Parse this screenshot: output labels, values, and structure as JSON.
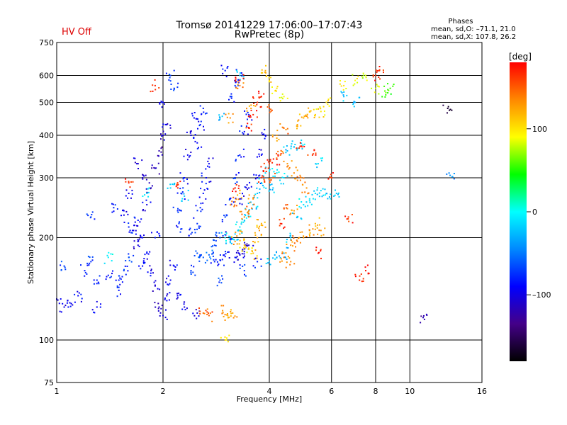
{
  "header": {
    "hv_status": "HV Off",
    "title_line1": "Tromsø 20141229 17:06:00–17:07:43",
    "title_line2": "RwPretec (8p)",
    "stats_title": "Phases",
    "stats_o": "mean, sd,O: –71.1, 21.0",
    "stats_x": "mean, sd,X: 107.8, 26.2"
  },
  "colors": {
    "hv_status": "#dd0000",
    "background": "#ffffff",
    "axes": "#000000"
  },
  "chart_data": {
    "type": "scatter",
    "xlabel": "Frequency [MHz]",
    "ylabel": "Stationary phase Virtual Height [km]",
    "x_scale": "log",
    "y_scale": "log",
    "xlim": [
      1,
      16
    ],
    "ylim": [
      75,
      750
    ],
    "x_ticks": [
      1,
      2,
      4,
      6,
      8,
      10,
      16
    ],
    "x_tick_labels": [
      "1",
      "2",
      "4",
      "6",
      "8",
      "10",
      "16"
    ],
    "y_ticks": [
      75,
      100,
      200,
      300,
      400,
      500,
      600,
      750
    ],
    "y_tick_labels": [
      "75",
      "100",
      "200",
      "300",
      "400",
      "500",
      "600",
      "750"
    ],
    "grid": true,
    "colorbar": {
      "unit": "[deg]",
      "range": [
        -180,
        180
      ],
      "ticks": [
        100,
        0,
        -100
      ],
      "tick_labels": [
        "100",
        "0",
        "–100"
      ],
      "stops": [
        "#ff0000",
        "#ff8800",
        "#ffff00",
        "#00ff00",
        "#00ffff",
        "#0088ff",
        "#0000ff",
        "#440088",
        "#000000"
      ]
    },
    "series": [
      {
        "points": [
          [
            1.0,
            132,
            -95
          ],
          [
            1.05,
            125,
            -100
          ],
          [
            1.1,
            128,
            -95
          ],
          [
            1.15,
            135,
            -90
          ],
          [
            1.2,
            160,
            -80
          ],
          [
            1.25,
            170,
            -75
          ],
          [
            1.3,
            150,
            -80
          ],
          [
            1.4,
            155,
            -85
          ],
          [
            1.5,
            150,
            -80
          ],
          [
            1.55,
            160,
            -75
          ],
          [
            1.6,
            175,
            -70
          ],
          [
            1.7,
            225,
            -85
          ],
          [
            1.75,
            200,
            -90
          ],
          [
            1.8,
            180,
            -95
          ],
          [
            1.85,
            160,
            -100
          ],
          [
            1.9,
            145,
            -105
          ],
          [
            1.95,
            125,
            -110
          ],
          [
            2.0,
            118,
            -105
          ],
          [
            2.05,
            135,
            -100
          ],
          [
            2.1,
            150,
            -95
          ],
          [
            2.15,
            165,
            -90
          ],
          [
            1.8,
            250,
            -100
          ],
          [
            1.85,
            280,
            -110
          ],
          [
            1.9,
            320,
            -115
          ],
          [
            1.95,
            360,
            -120
          ],
          [
            2.0,
            400,
            -110
          ],
          [
            2.05,
            430,
            -105
          ],
          [
            1.7,
            330,
            -110
          ],
          [
            1.75,
            300,
            -105
          ],
          [
            1.6,
            270,
            -100
          ],
          [
            1.55,
            240,
            -95
          ],
          [
            1.65,
            210,
            -100
          ],
          [
            1.7,
            190,
            -105
          ],
          [
            1.75,
            165,
            -90
          ],
          [
            1.9,
            200,
            -85
          ],
          [
            2.2,
            240,
            -80
          ],
          [
            2.25,
            270,
            -75
          ],
          [
            2.3,
            300,
            -90
          ],
          [
            2.35,
            350,
            -95
          ],
          [
            2.4,
            400,
            -100
          ],
          [
            2.45,
            450,
            -95
          ],
          [
            2.1,
            600,
            -70
          ],
          [
            2.15,
            550,
            -75
          ],
          [
            2.0,
            500,
            -90
          ],
          [
            2.2,
            215,
            -85
          ],
          [
            2.4,
            205,
            -80
          ],
          [
            2.5,
            220,
            -75
          ],
          [
            2.55,
            245,
            -80
          ],
          [
            2.6,
            270,
            -85
          ],
          [
            2.65,
            300,
            -90
          ],
          [
            2.7,
            330,
            -95
          ],
          [
            2.5,
            380,
            -90
          ],
          [
            2.55,
            430,
            -85
          ],
          [
            2.6,
            480,
            -80
          ],
          [
            2.5,
            180,
            -65
          ],
          [
            2.6,
            175,
            -60
          ],
          [
            2.7,
            178,
            -60
          ],
          [
            2.8,
            190,
            -65
          ],
          [
            2.9,
            200,
            -70
          ],
          [
            3.0,
            230,
            -70
          ],
          [
            3.1,
            260,
            -75
          ],
          [
            3.2,
            300,
            -80
          ],
          [
            3.3,
            350,
            -85
          ],
          [
            3.4,
            410,
            -90
          ],
          [
            3.5,
            460,
            -85
          ],
          [
            3.1,
            520,
            -80
          ],
          [
            3.2,
            560,
            -75
          ],
          [
            3.3,
            600,
            -80
          ],
          [
            3.0,
            620,
            -85
          ],
          [
            3.2,
            175,
            -95
          ],
          [
            3.3,
            178,
            -100
          ],
          [
            3.4,
            182,
            -105
          ],
          [
            3.5,
            190,
            -110
          ],
          [
            2.8,
            170,
            -80
          ],
          [
            2.9,
            172,
            -85
          ],
          [
            3.0,
            176,
            -90
          ],
          [
            3.1,
            200,
            -95
          ],
          [
            3.3,
            260,
            -100
          ],
          [
            3.5,
            280,
            -95
          ],
          [
            3.7,
            300,
            -90
          ],
          [
            3.8,
            350,
            -95
          ],
          [
            3.9,
            400,
            -90
          ],
          [
            2.4,
            160,
            -70
          ],
          [
            2.9,
            150,
            -65
          ],
          [
            3.4,
            160,
            -75
          ],
          [
            3.7,
            170,
            -80
          ],
          [
            2.3,
            125,
            -100
          ],
          [
            2.5,
            120,
            -105
          ],
          [
            2.2,
            135,
            -95
          ],
          [
            1.3,
            125,
            -90
          ],
          [
            1.5,
            140,
            -85
          ],
          [
            1.45,
            245,
            -80
          ],
          [
            1.6,
            215,
            -80
          ],
          [
            1.25,
            230,
            -75
          ],
          [
            1.05,
            165,
            -70
          ]
        ]
      },
      {
        "points": [
          [
            3.0,
            200,
            -10
          ],
          [
            3.1,
            195,
            -15
          ],
          [
            3.2,
            205,
            -20
          ],
          [
            3.3,
            215,
            -5
          ],
          [
            3.4,
            225,
            -10
          ],
          [
            3.5,
            235,
            -15
          ],
          [
            3.6,
            250,
            -20
          ],
          [
            3.7,
            270,
            -25
          ],
          [
            3.8,
            290,
            -20
          ],
          [
            3.9,
            310,
            -15
          ],
          [
            4.0,
            170,
            -20
          ],
          [
            4.2,
            175,
            -25
          ],
          [
            4.4,
            180,
            -30
          ],
          [
            4.6,
            200,
            -20
          ],
          [
            4.8,
            230,
            -15
          ],
          [
            5.0,
            250,
            -10
          ],
          [
            5.2,
            260,
            -5
          ],
          [
            5.4,
            270,
            -10
          ],
          [
            5.6,
            275,
            -15
          ],
          [
            5.8,
            270,
            -20
          ],
          [
            4.5,
            360,
            -25
          ],
          [
            4.7,
            370,
            -20
          ],
          [
            4.9,
            380,
            -15
          ],
          [
            4.2,
            310,
            -10
          ],
          [
            4.4,
            300,
            -15
          ],
          [
            4.1,
            280,
            -20
          ],
          [
            6.5,
            520,
            -25
          ],
          [
            7.0,
            500,
            -30
          ],
          [
            2.1,
            280,
            -15
          ],
          [
            2.3,
            265,
            -20
          ],
          [
            1.8,
            270,
            -10
          ],
          [
            1.4,
            175,
            -5
          ],
          [
            3.3,
            600,
            -20
          ],
          [
            2.9,
            450,
            -25
          ],
          [
            5.5,
            330,
            -15
          ],
          [
            6.2,
            270,
            -20
          ]
        ]
      },
      {
        "points": [
          [
            3.2,
            195,
            130
          ],
          [
            3.3,
            205,
            120
          ],
          [
            3.4,
            190,
            110
          ],
          [
            3.5,
            185,
            100
          ],
          [
            3.6,
            180,
            115
          ],
          [
            3.7,
            200,
            125
          ],
          [
            3.75,
            210,
            130
          ],
          [
            3.8,
            220,
            120
          ],
          [
            3.4,
            230,
            135
          ],
          [
            3.5,
            240,
            140
          ],
          [
            3.6,
            260,
            130
          ],
          [
            3.3,
            270,
            125
          ],
          [
            3.2,
            255,
            135
          ],
          [
            3.15,
            120,
            125
          ],
          [
            2.95,
            122,
            130
          ],
          [
            3.05,
            118,
            120
          ],
          [
            4.6,
            190,
            135
          ],
          [
            4.8,
            195,
            140
          ],
          [
            5.0,
            200,
            130
          ],
          [
            5.2,
            210,
            125
          ],
          [
            5.4,
            220,
            120
          ],
          [
            5.6,
            210,
            130
          ],
          [
            4.4,
            175,
            140
          ],
          [
            4.6,
            170,
            135
          ],
          [
            5.2,
            470,
            115
          ],
          [
            5.4,
            460,
            110
          ],
          [
            5.6,
            470,
            100
          ],
          [
            5.8,
            500,
            105
          ],
          [
            5.0,
            450,
            120
          ],
          [
            4.8,
            430,
            125
          ],
          [
            4.3,
            350,
            140
          ],
          [
            4.5,
            330,
            130
          ],
          [
            4.7,
            310,
            135
          ],
          [
            4.9,
            295,
            140
          ],
          [
            5.1,
            280,
            130
          ],
          [
            3.9,
            620,
            120
          ],
          [
            4.0,
            580,
            110
          ],
          [
            4.2,
            550,
            100
          ],
          [
            4.4,
            520,
            95
          ],
          [
            6.5,
            560,
            100
          ],
          [
            7.0,
            580,
            90
          ],
          [
            7.5,
            600,
            85
          ],
          [
            8.0,
            550,
            80
          ],
          [
            8.5,
            540,
            60
          ],
          [
            8.8,
            550,
            55
          ],
          [
            2.6,
            120,
            145
          ],
          [
            2.7,
            118,
            150
          ],
          [
            3.0,
            100,
            110
          ],
          [
            3.55,
            480,
            125
          ],
          [
            4.2,
            400,
            130
          ],
          [
            4.4,
            420,
            140
          ],
          [
            4.5,
            250,
            150
          ],
          [
            3.3,
            560,
            140
          ],
          [
            3.1,
            450,
            135
          ],
          [
            4.7,
            240,
            130
          ],
          [
            4.1,
            300,
            145
          ]
        ]
      },
      {
        "points": [
          [
            3.8,
            300,
            165
          ],
          [
            3.9,
            320,
            170
          ],
          [
            4.0,
            330,
            160
          ],
          [
            4.2,
            340,
            175
          ],
          [
            3.7,
            500,
            165
          ],
          [
            3.8,
            520,
            170
          ],
          [
            4.0,
            480,
            160
          ],
          [
            3.3,
            580,
            175
          ],
          [
            3.5,
            420,
            170
          ],
          [
            6.7,
            230,
            165
          ],
          [
            7.2,
            150,
            170
          ],
          [
            7.5,
            160,
            175
          ],
          [
            8.0,
            600,
            170
          ],
          [
            8.2,
            620,
            165
          ],
          [
            1.9,
            560,
            170
          ],
          [
            2.2,
            290,
            160
          ],
          [
            1.6,
            290,
            170
          ],
          [
            4.9,
            380,
            175
          ],
          [
            5.3,
            350,
            165
          ],
          [
            6.0,
            300,
            170
          ],
          [
            5.5,
            180,
            172
          ],
          [
            3.6,
            460,
            168
          ],
          [
            3.2,
            280,
            176
          ],
          [
            4.3,
            220,
            166
          ],
          [
            12.8,
            480,
            -160
          ],
          [
            11.0,
            115,
            -120
          ],
          [
            13.0,
            305,
            -40
          ]
        ]
      }
    ]
  }
}
